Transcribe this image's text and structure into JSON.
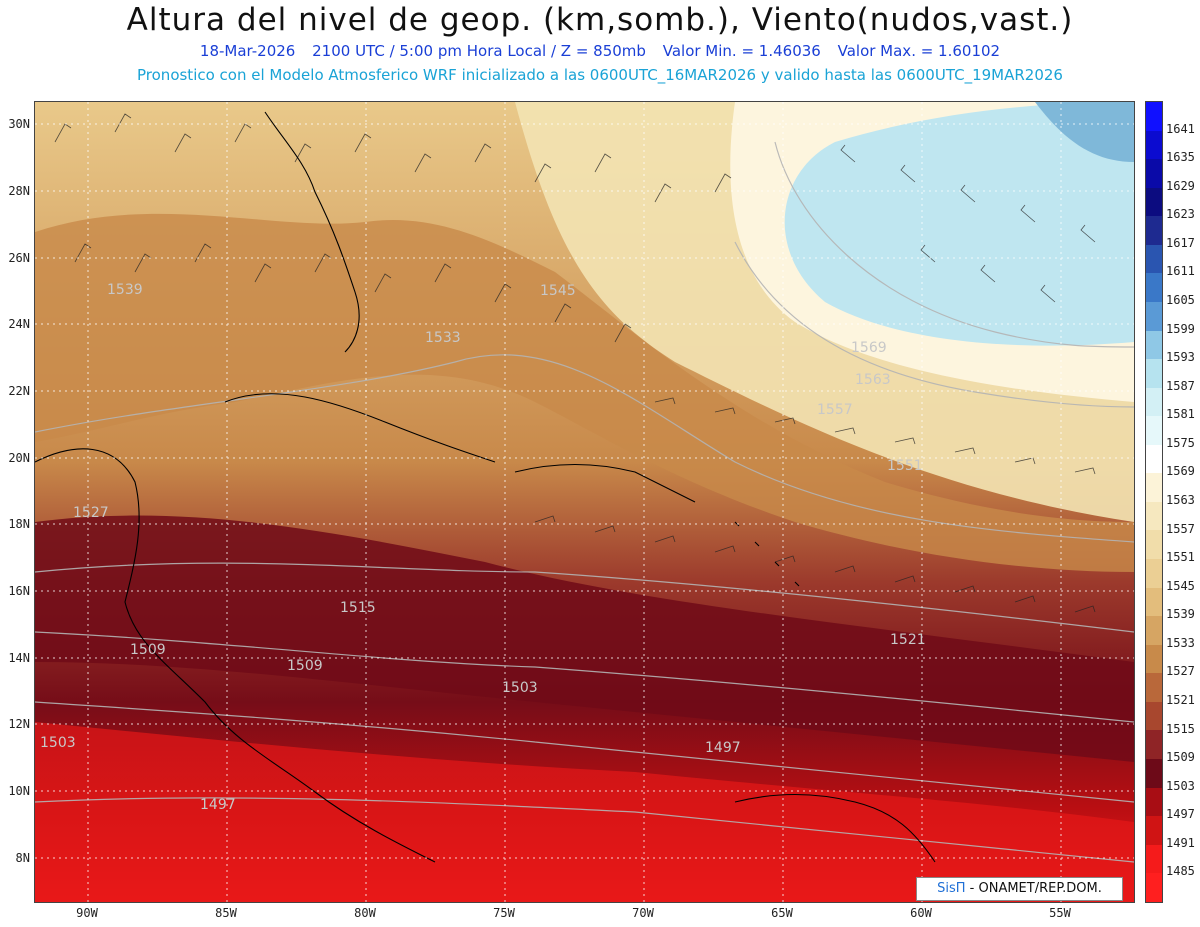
{
  "header": {
    "title": "Altura del nivel de geop. (km,somb.), Viento(nudos,vast.)",
    "date": "18-Mar-2026",
    "time": "2100 UTC / 5:00 pm Hora Local / Z = 850mb",
    "min_label": "Valor Min. = 1.46036",
    "max_label": "Valor Max. = 1.60102",
    "model_info": "Pronostico con el Modelo Atmosferico WRF inicializado a las 0600UTC_16MAR2026 y valido hasta las  0600UTC_19MAR2026"
  },
  "map": {
    "lat_labels": [
      "30N",
      "28N",
      "26N",
      "24N",
      "22N",
      "20N",
      "18N",
      "16N",
      "14N",
      "12N",
      "10N",
      "8N"
    ],
    "lon_labels": [
      "90W",
      "85W",
      "80W",
      "75W",
      "70W",
      "65W",
      "60W",
      "55W"
    ],
    "contour_labels": [
      "1539",
      "1533",
      "1545",
      "1527",
      "1515",
      "1509",
      "1503",
      "1497",
      "1569",
      "1563",
      "1557",
      "1551",
      "1521"
    ],
    "credit_brand": "SisΠ",
    "credit_text": " - ONAMET/REP.DOM."
  },
  "colorbar": {
    "levels": [
      "1641",
      "1635",
      "1629",
      "1623",
      "1617",
      "1611",
      "1605",
      "1599",
      "1593",
      "1587",
      "1581",
      "1575",
      "1569",
      "1563",
      "1557",
      "1551",
      "1545",
      "1539",
      "1533",
      "1527",
      "1521",
      "1515",
      "1509",
      "1503",
      "1497",
      "1491",
      "1485"
    ],
    "colors": [
      "#1010ff",
      "#0b0bd0",
      "#0a0aa8",
      "#0c0c80",
      "#1e2a90",
      "#2a55b0",
      "#3a78c8",
      "#5a9ad6",
      "#8fc8e6",
      "#b6e3ef",
      "#d3f0f5",
      "#e6f8fa",
      "#ffffff",
      "#fcf3d8",
      "#f6e8bf",
      "#f1ddaa",
      "#ebcf94",
      "#e3bd7c",
      "#d6a563",
      "#c88a4a",
      "#b9683a",
      "#a8472e",
      "#8f2426",
      "#6d0a18",
      "#a80d14",
      "#d01414",
      "#f51b1b",
      "#ff1f1f"
    ]
  }
}
